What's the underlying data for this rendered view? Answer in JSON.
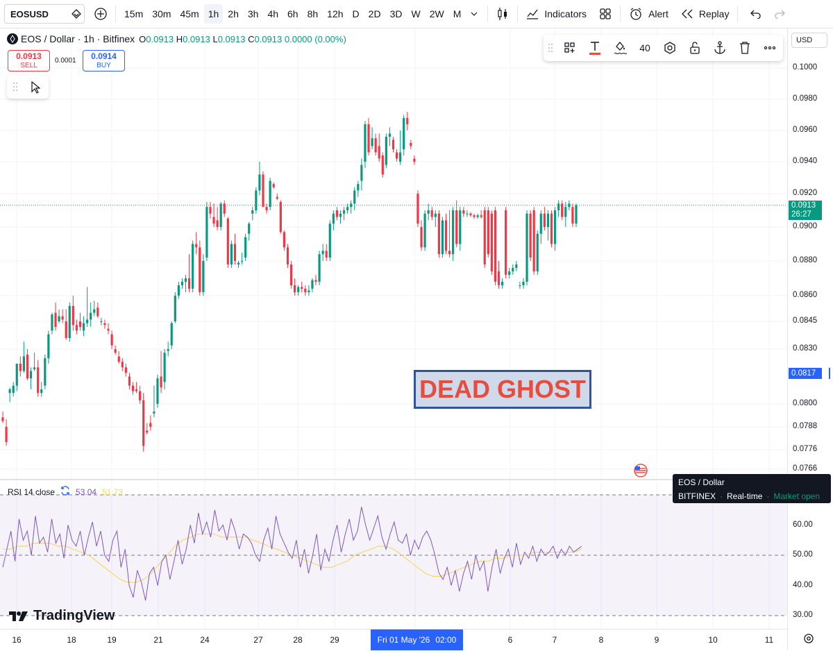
{
  "topbar": {
    "symbol": "EOSUSD",
    "intervals": [
      "15m",
      "30m",
      "45m",
      "1h",
      "2h",
      "3h",
      "4h",
      "6h",
      "8h",
      "12h",
      "D",
      "2D",
      "3D",
      "W",
      "2W",
      "M"
    ],
    "active_interval": "1h",
    "indicators_label": "Indicators",
    "alert_label": "Alert",
    "replay_label": "Replay"
  },
  "legend": {
    "title": "EOS / Dollar · 1h · Bitfinex",
    "o_label": "O",
    "o": "0.0913",
    "h_label": "H",
    "h": "0.0913",
    "l_label": "L",
    "l": "0.0913",
    "c_label": "C",
    "c": "0.0913",
    "change": "0.0000 (0.00%)"
  },
  "trade": {
    "sell_price": "0.0913",
    "sell_label": "SELL",
    "spread": "0.0001",
    "buy_price": "0.0914",
    "buy_label": "BUY"
  },
  "drawing_toolbar": {
    "line_width": "40"
  },
  "price_axis": {
    "currency": "USD",
    "labels": [
      {
        "text": "0.1000",
        "value": 0.1
      },
      {
        "text": "0.0980",
        "value": 0.098
      },
      {
        "text": "0.0960",
        "value": 0.096
      },
      {
        "text": "0.0940",
        "value": 0.094
      },
      {
        "text": "0.0920",
        "value": 0.092
      },
      {
        "text": "0.0900",
        "value": 0.09
      },
      {
        "text": "0.0880",
        "value": 0.088
      },
      {
        "text": "0.0860",
        "value": 0.086
      },
      {
        "text": "0.0845",
        "value": 0.0845
      },
      {
        "text": "0.0830",
        "value": 0.083
      },
      {
        "text": "0.0800",
        "value": 0.08
      },
      {
        "text": "0.0788",
        "value": 0.0788
      },
      {
        "text": "0.0776",
        "value": 0.0776
      },
      {
        "text": "0.0766",
        "value": 0.0766
      }
    ],
    "last_price": "0.0913",
    "countdown": "26:27",
    "crosshair_price": "0.0817"
  },
  "rsi": {
    "label": "RSI 14 close",
    "value": "53.04",
    "ma_value": "51.73",
    "levels": [
      "60.00",
      "50.00",
      "40.00",
      "30.00"
    ],
    "upper_band": 70,
    "lower_band": 30
  },
  "tooltip": {
    "title": "EOS / Dollar",
    "exchange": "BITFINEX",
    "feed": "Real-time",
    "status": "Market open"
  },
  "annotation": {
    "text": "DEAD GHOST"
  },
  "brand": {
    "name": "TradingView"
  },
  "time_axis": {
    "labels": [
      "16",
      "18",
      "19",
      "21",
      "24",
      "27",
      "28",
      "29",
      "6",
      "7",
      "8",
      "9",
      "10",
      "11"
    ],
    "crosshair_date": "Fri 01 May '26",
    "crosshair_time": "02:00"
  },
  "colors": {
    "up": "#089981",
    "down": "#f23645",
    "rsi_line": "#7e57c2",
    "rsi_ma": "#f5d96a",
    "accent": "#2962ff"
  },
  "chart_data": {
    "type": "candlestick",
    "symbol": "EOS / Dollar",
    "interval": "1h",
    "y_range": [
      0.0765,
      0.1005
    ],
    "last_close": 0.0913,
    "candles": [
      [
        0.0793,
        0.0796,
        0.079,
        0.0791
      ],
      [
        0.0788,
        0.0792,
        0.0778,
        0.078
      ],
      [
        0.0806,
        0.0809,
        0.0801,
        0.0808
      ],
      [
        0.0806,
        0.0812,
        0.0804,
        0.081
      ],
      [
        0.081,
        0.0822,
        0.0807,
        0.0822
      ],
      [
        0.0822,
        0.0826,
        0.0815,
        0.0818
      ],
      [
        0.0818,
        0.0834,
        0.0817,
        0.0826
      ],
      [
        0.0827,
        0.083,
        0.0813,
        0.0814
      ],
      [
        0.0814,
        0.082,
        0.0808,
        0.0818
      ],
      [
        0.0819,
        0.0828,
        0.0818,
        0.082
      ],
      [
        0.082,
        0.0824,
        0.0804,
        0.0806
      ],
      [
        0.0806,
        0.0812,
        0.0804,
        0.0808
      ],
      [
        0.081,
        0.0827,
        0.0808,
        0.0825
      ],
      [
        0.0825,
        0.084,
        0.0822,
        0.0838
      ],
      [
        0.084,
        0.085,
        0.0838,
        0.0849
      ],
      [
        0.085,
        0.0856,
        0.084,
        0.0842
      ],
      [
        0.0845,
        0.0852,
        0.0844,
        0.0848
      ],
      [
        0.0848,
        0.0852,
        0.0844,
        0.0846
      ],
      [
        0.0845,
        0.0852,
        0.0835,
        0.0836
      ],
      [
        0.0836,
        0.0856,
        0.0834,
        0.0854
      ],
      [
        0.0854,
        0.086,
        0.084,
        0.0843
      ],
      [
        0.0843,
        0.0846,
        0.0838,
        0.084
      ],
      [
        0.0845,
        0.085,
        0.084,
        0.0842
      ],
      [
        0.084,
        0.0848,
        0.0837,
        0.0844
      ],
      [
        0.0844,
        0.0865,
        0.0842,
        0.0846
      ],
      [
        0.0846,
        0.0856,
        0.0842,
        0.085
      ],
      [
        0.085,
        0.0857,
        0.0848,
        0.0852
      ],
      [
        0.0853,
        0.0856,
        0.0847,
        0.0848
      ],
      [
        0.0845,
        0.0847,
        0.0843,
        0.0845
      ],
      [
        0.0844,
        0.0846,
        0.0841,
        0.0843
      ],
      [
        0.0841,
        0.0844,
        0.0838,
        0.084
      ],
      [
        0.0838,
        0.084,
        0.083,
        0.0832
      ],
      [
        0.083,
        0.0832,
        0.0827,
        0.0828
      ],
      [
        0.0826,
        0.0829,
        0.0822,
        0.0823
      ],
      [
        0.0823,
        0.0825,
        0.0818,
        0.082
      ],
      [
        0.082,
        0.0822,
        0.0815,
        0.0817
      ],
      [
        0.0815,
        0.0817,
        0.0808,
        0.081
      ],
      [
        0.081,
        0.0812,
        0.0805,
        0.0807
      ],
      [
        0.0808,
        0.0812,
        0.0806,
        0.0807
      ],
      [
        0.0807,
        0.081,
        0.08,
        0.0802
      ],
      [
        0.0802,
        0.0806,
        0.0775,
        0.0778
      ],
      [
        0.0786,
        0.079,
        0.0784,
        0.0785
      ],
      [
        0.079,
        0.0794,
        0.0786,
        0.0788
      ],
      [
        0.0795,
        0.081,
        0.0793,
        0.0796
      ],
      [
        0.08,
        0.0816,
        0.0798,
        0.0814
      ],
      [
        0.0815,
        0.0829,
        0.0806,
        0.0809
      ],
      [
        0.0812,
        0.083,
        0.0808,
        0.0828
      ],
      [
        0.0829,
        0.0834,
        0.0826,
        0.083
      ],
      [
        0.0832,
        0.0845,
        0.083,
        0.0844
      ],
      [
        0.0845,
        0.0862,
        0.0844,
        0.086
      ],
      [
        0.086,
        0.0868,
        0.0858,
        0.0866
      ],
      [
        0.0866,
        0.087,
        0.0864,
        0.0868
      ],
      [
        0.0868,
        0.0872,
        0.0862,
        0.087
      ],
      [
        0.087,
        0.0884,
        0.0862,
        0.0864
      ],
      [
        0.0864,
        0.0892,
        0.0862,
        0.089
      ],
      [
        0.089,
        0.0897,
        0.0884,
        0.0888
      ],
      [
        0.0888,
        0.0892,
        0.086,
        0.0862
      ],
      [
        0.0862,
        0.0884,
        0.086,
        0.088
      ],
      [
        0.0882,
        0.0915,
        0.088,
        0.0912
      ],
      [
        0.0912,
        0.0915,
        0.0905,
        0.0908
      ],
      [
        0.0906,
        0.0914,
        0.09,
        0.0902
      ],
      [
        0.0904,
        0.0912,
        0.0898,
        0.09
      ],
      [
        0.09,
        0.0915,
        0.0898,
        0.0914
      ],
      [
        0.0914,
        0.0916,
        0.0906,
        0.0908
      ],
      [
        0.0905,
        0.0906,
        0.0876,
        0.0878
      ],
      [
        0.0878,
        0.0892,
        0.0876,
        0.089
      ],
      [
        0.089,
        0.0896,
        0.0878,
        0.088
      ],
      [
        0.0878,
        0.088,
        0.0876,
        0.0879
      ],
      [
        0.088,
        0.0885,
        0.0878,
        0.088
      ],
      [
        0.0882,
        0.0896,
        0.088,
        0.0894
      ],
      [
        0.0896,
        0.0903,
        0.0892,
        0.0902
      ],
      [
        0.0908,
        0.0912,
        0.0904,
        0.091
      ],
      [
        0.091,
        0.0924,
        0.0908,
        0.0922
      ],
      [
        0.0922,
        0.094,
        0.0919,
        0.0932
      ],
      [
        0.0932,
        0.0934,
        0.0912,
        0.0912
      ],
      [
        0.0912,
        0.0914,
        0.0908,
        0.091
      ],
      [
        0.0912,
        0.093,
        0.091,
        0.0928
      ],
      [
        0.0926,
        0.0927,
        0.0923,
        0.0924
      ],
      [
        0.0918,
        0.092,
        0.0916,
        0.0917
      ],
      [
        0.0915,
        0.0916,
        0.0896,
        0.0897
      ],
      [
        0.0897,
        0.0898,
        0.0886,
        0.0888
      ],
      [
        0.0888,
        0.089,
        0.0876,
        0.0878
      ],
      [
        0.0878,
        0.088,
        0.0864,
        0.0866
      ],
      [
        0.0866,
        0.087,
        0.086,
        0.0862
      ],
      [
        0.0862,
        0.0866,
        0.086,
        0.0865
      ],
      [
        0.0865,
        0.0868,
        0.0862,
        0.0864
      ],
      [
        0.0864,
        0.0866,
        0.086,
        0.0862
      ],
      [
        0.0862,
        0.0866,
        0.086,
        0.0863
      ],
      [
        0.0864,
        0.087,
        0.0862,
        0.0869
      ],
      [
        0.0869,
        0.0872,
        0.0866,
        0.0868
      ],
      [
        0.0868,
        0.0886,
        0.0866,
        0.0884
      ],
      [
        0.0884,
        0.089,
        0.088,
        0.0886
      ],
      [
        0.0886,
        0.089,
        0.088,
        0.0882
      ],
      [
        0.0882,
        0.0904,
        0.088,
        0.0902
      ],
      [
        0.0902,
        0.091,
        0.0898,
        0.0908
      ],
      [
        0.091,
        0.0912,
        0.0904,
        0.0906
      ],
      [
        0.0906,
        0.091,
        0.0902,
        0.0908
      ],
      [
        0.0908,
        0.0912,
        0.0904,
        0.091
      ],
      [
        0.091,
        0.0914,
        0.0908,
        0.0912
      ],
      [
        0.0912,
        0.0916,
        0.0908,
        0.0914
      ],
      [
        0.0914,
        0.0924,
        0.091,
        0.0922
      ],
      [
        0.0922,
        0.0928,
        0.0918,
        0.0926
      ],
      [
        0.0928,
        0.0942,
        0.0922,
        0.0938
      ],
      [
        0.094,
        0.0966,
        0.0936,
        0.0964
      ],
      [
        0.0964,
        0.0968,
        0.0944,
        0.0946
      ],
      [
        0.095,
        0.0962,
        0.0948,
        0.0955
      ],
      [
        0.0955,
        0.0958,
        0.0944,
        0.0946
      ],
      [
        0.095,
        0.0958,
        0.094,
        0.0942
      ],
      [
        0.0944,
        0.0946,
        0.093,
        0.0932
      ],
      [
        0.0938,
        0.0958,
        0.0936,
        0.0956
      ],
      [
        0.0956,
        0.0962,
        0.095,
        0.0958
      ],
      [
        0.0954,
        0.0956,
        0.0946,
        0.0948
      ],
      [
        0.0946,
        0.0948,
        0.094,
        0.0942
      ],
      [
        0.094,
        0.096,
        0.0938,
        0.0946
      ],
      [
        0.0948,
        0.097,
        0.0944,
        0.0968
      ],
      [
        0.0968,
        0.0972,
        0.096,
        0.0964
      ],
      [
        0.0952,
        0.0954,
        0.0948,
        0.095
      ],
      [
        0.0942,
        0.0944,
        0.0938,
        0.094
      ],
      [
        0.092,
        0.0922,
        0.09,
        0.0902
      ],
      [
        0.09,
        0.0904,
        0.0886,
        0.0888
      ],
      [
        0.0888,
        0.091,
        0.0886,
        0.0908
      ],
      [
        0.0908,
        0.0914,
        0.0904,
        0.091
      ],
      [
        0.091,
        0.0912,
        0.0904,
        0.0906
      ],
      [
        0.0906,
        0.091,
        0.09,
        0.0908
      ],
      [
        0.0908,
        0.091,
        0.0882,
        0.0884
      ],
      [
        0.0884,
        0.0906,
        0.0882,
        0.0904
      ],
      [
        0.0904,
        0.0908,
        0.0884,
        0.0886
      ],
      [
        0.0886,
        0.091,
        0.0882,
        0.0884
      ],
      [
        0.0884,
        0.0912,
        0.088,
        0.091
      ],
      [
        0.091,
        0.0916,
        0.0888,
        0.089
      ],
      [
        0.089,
        0.0912,
        0.0886,
        0.091
      ],
      [
        0.091,
        0.0912,
        0.0906,
        0.0908
      ],
      [
        0.0908,
        0.091,
        0.0906,
        0.0908
      ],
      [
        0.0908,
        0.0909,
        0.0906,
        0.0907
      ],
      [
        0.0907,
        0.0908,
        0.0905,
        0.0906
      ],
      [
        0.0906,
        0.0908,
        0.0905,
        0.0907
      ],
      [
        0.0907,
        0.091,
        0.0905,
        0.0906
      ],
      [
        0.091,
        0.0912,
        0.0876,
        0.0878
      ],
      [
        0.091,
        0.0912,
        0.0882,
        0.0884
      ],
      [
        0.0908,
        0.091,
        0.0872,
        0.0874
      ],
      [
        0.091,
        0.0912,
        0.0866,
        0.0868
      ],
      [
        0.0874,
        0.088,
        0.0864,
        0.0866
      ],
      [
        0.0866,
        0.087,
        0.0864,
        0.0868
      ],
      [
        0.091,
        0.0912,
        0.087,
        0.0872
      ],
      [
        0.0872,
        0.0876,
        0.087,
        0.0874
      ],
      [
        0.0874,
        0.0878,
        0.0872,
        0.0876
      ],
      [
        0.0876,
        0.088,
        0.0874,
        0.0878
      ],
      [
        0.0866,
        0.0868,
        0.0864,
        0.0866
      ],
      [
        0.0866,
        0.087,
        0.0864,
        0.0868
      ],
      [
        0.0868,
        0.091,
        0.0866,
        0.0908
      ],
      [
        0.0908,
        0.091,
        0.088,
        0.0882
      ],
      [
        0.091,
        0.0912,
        0.0872,
        0.0874
      ],
      [
        0.0874,
        0.0898,
        0.0872,
        0.0896
      ],
      [
        0.0896,
        0.091,
        0.089,
        0.0908
      ],
      [
        0.0908,
        0.0912,
        0.0898,
        0.09
      ],
      [
        0.09,
        0.091,
        0.0892,
        0.0908
      ],
      [
        0.0908,
        0.091,
        0.0888,
        0.089
      ],
      [
        0.089,
        0.0912,
        0.0886,
        0.091
      ],
      [
        0.091,
        0.0916,
        0.0906,
        0.0914
      ],
      [
        0.0914,
        0.0916,
        0.0904,
        0.0906
      ],
      [
        0.0906,
        0.0915,
        0.09,
        0.0912
      ],
      [
        0.0912,
        0.0916,
        0.091,
        0.0914
      ],
      [
        0.0912,
        0.0914,
        0.09,
        0.0902
      ],
      [
        0.0902,
        0.0914,
        0.09,
        0.0913
      ]
    ],
    "rsi_values": [
      46,
      52,
      58,
      48,
      62,
      55,
      58,
      50,
      63,
      54,
      56,
      51,
      62,
      54,
      57,
      49,
      60,
      55,
      53,
      58,
      50,
      56,
      61,
      53,
      58,
      50,
      48,
      55,
      58,
      46,
      52,
      40,
      36,
      45,
      41,
      35,
      44,
      46,
      40,
      48,
      50,
      42,
      48,
      55,
      47,
      52,
      60,
      54,
      64,
      57,
      61,
      56,
      65,
      58,
      60,
      55,
      62,
      58,
      52,
      57,
      56,
      54,
      50,
      48,
      55,
      59,
      52,
      63,
      57,
      54,
      51,
      49,
      55,
      46,
      52,
      44,
      50,
      57,
      45,
      52,
      48,
      55,
      60,
      51,
      57,
      62,
      55,
      58,
      66,
      60,
      55,
      59,
      63,
      56,
      52,
      57,
      61,
      55,
      54,
      57,
      50,
      55,
      52,
      56,
      58,
      55,
      50,
      44,
      42,
      46,
      40,
      45,
      38,
      44,
      48,
      42,
      50,
      45,
      48,
      38,
      46,
      52,
      44,
      49,
      52,
      46,
      54,
      47,
      51,
      49,
      53,
      48,
      52,
      50,
      51,
      53,
      49,
      52,
      50,
      53,
      51,
      52,
      53
    ],
    "rsi_ma_values": [
      52,
      52,
      53,
      53,
      54,
      54,
      54,
      53,
      53,
      52,
      51,
      50,
      48,
      46,
      44,
      42,
      41,
      41,
      42,
      44,
      47,
      50,
      53,
      55,
      56,
      57,
      57,
      57,
      56,
      56,
      56,
      56,
      55,
      54,
      53,
      52,
      51,
      50,
      49,
      48,
      47,
      46,
      46,
      47,
      48,
      50,
      51,
      52,
      53,
      53,
      52,
      50,
      48,
      46,
      44,
      43,
      43,
      44,
      45,
      46,
      47,
      48,
      48,
      49,
      49,
      50,
      50,
      50,
      51,
      51,
      51,
      51,
      51,
      51,
      52
    ]
  }
}
